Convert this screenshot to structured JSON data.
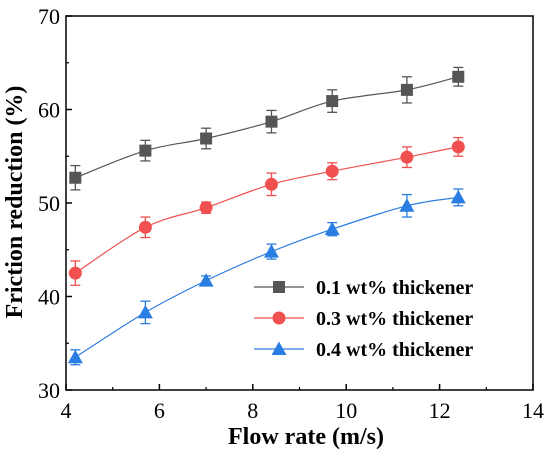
{
  "chart_data": {
    "type": "line",
    "xlabel": "Flow rate (m/s)",
    "ylabel": "Friction reduction (%)",
    "xlim": [
      4,
      14
    ],
    "ylim": [
      30,
      70
    ],
    "xticks": [
      4,
      6,
      8,
      10,
      12,
      14
    ],
    "yticks": [
      30,
      40,
      50,
      60,
      70
    ],
    "x_tick_labels": [
      "4",
      "6",
      "8",
      "10",
      "12",
      "14"
    ],
    "y_tick_labels": [
      "30",
      "40",
      "50",
      "60",
      "70"
    ],
    "grid": false,
    "legend_position": "bottom-right",
    "series": [
      {
        "name": "0.1 wt% thickener",
        "marker": "square",
        "color": "#555555",
        "x": [
          4.2,
          5.7,
          7.0,
          8.4,
          9.7,
          11.3,
          12.4
        ],
        "y": [
          52.7,
          55.6,
          56.9,
          58.7,
          60.9,
          62.1,
          63.5
        ],
        "err": [
          1.3,
          1.1,
          1.1,
          1.2,
          1.2,
          1.4,
          1.0
        ]
      },
      {
        "name": "0.3 wt% thickener",
        "marker": "circle",
        "color": "#f05050",
        "x": [
          4.2,
          5.7,
          7.0,
          8.4,
          9.7,
          11.3,
          12.4
        ],
        "y": [
          42.5,
          47.4,
          49.5,
          52.0,
          53.4,
          54.9,
          56.0
        ],
        "err": [
          1.3,
          1.1,
          0.6,
          1.2,
          0.9,
          1.1,
          1.0
        ]
      },
      {
        "name": "0.4 wt% thickener",
        "marker": "triangle",
        "color": "#2a7de1",
        "x": [
          4.2,
          5.7,
          7.0,
          8.4,
          9.7,
          11.3,
          12.4
        ],
        "y": [
          33.5,
          38.3,
          41.7,
          44.8,
          47.2,
          49.7,
          50.6
        ],
        "err": [
          0.8,
          1.2,
          0.5,
          0.8,
          0.7,
          1.2,
          0.9
        ]
      }
    ]
  }
}
